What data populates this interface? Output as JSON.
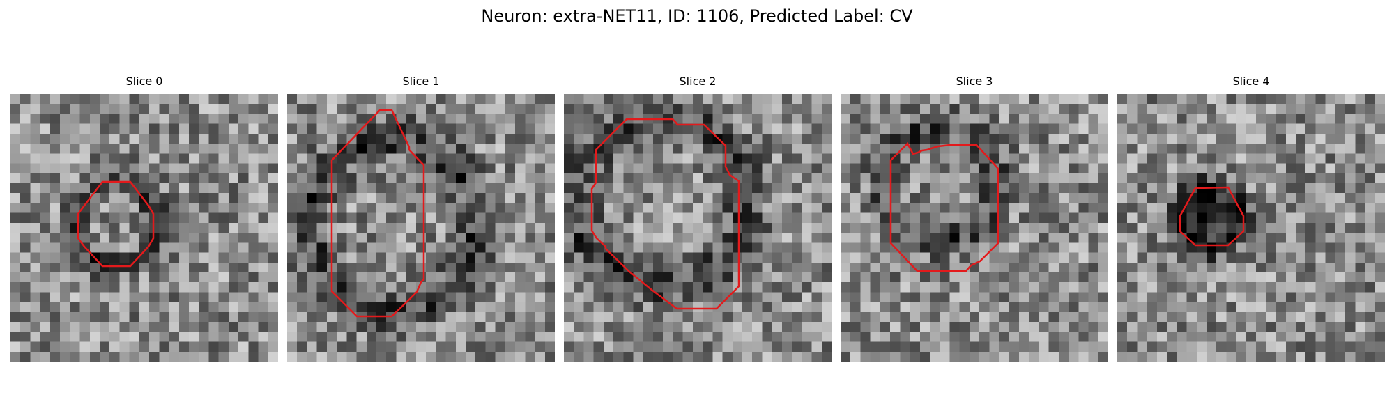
{
  "figure": {
    "title": "Neuron: extra-NET11, ID: 1106, Predicted Label: CV"
  },
  "colors": {
    "roi_outline": "#e31a1c",
    "image_colormap": "gray"
  },
  "panels": [
    {
      "title": "Slice 0",
      "roi": [
        [
          132,
          126
        ],
        [
          106,
          160
        ],
        [
          97,
          172
        ],
        [
          97,
          207
        ],
        [
          106,
          219
        ],
        [
          132,
          247
        ],
        [
          172,
          247
        ],
        [
          198,
          219
        ],
        [
          205,
          207
        ],
        [
          205,
          172
        ],
        [
          198,
          160
        ],
        [
          172,
          126
        ]
      ]
    },
    {
      "title": "Slice 1",
      "roi": [
        [
          133,
          23
        ],
        [
          64,
          95
        ],
        [
          64,
          283
        ],
        [
          100,
          319
        ],
        [
          150,
          319
        ],
        [
          174,
          296
        ],
        [
          186,
          284
        ],
        [
          192,
          270
        ],
        [
          196,
          266
        ],
        [
          196,
          102
        ],
        [
          175,
          80
        ],
        [
          175,
          76
        ],
        [
          150,
          23
        ]
      ]
    },
    {
      "title": "Slice 2",
      "roi": [
        [
          90,
          36
        ],
        [
          46,
          80
        ],
        [
          46,
          127
        ],
        [
          40,
          136
        ],
        [
          40,
          196
        ],
        [
          47,
          207
        ],
        [
          60,
          219
        ],
        [
          60,
          222
        ],
        [
          94,
          255
        ],
        [
          126,
          281
        ],
        [
          162,
          308
        ],
        [
          219,
          308
        ],
        [
          251,
          276
        ],
        [
          251,
          125
        ],
        [
          238,
          116
        ],
        [
          232,
          104
        ],
        [
          232,
          74
        ],
        [
          201,
          44
        ],
        [
          163,
          44
        ],
        [
          160,
          40
        ],
        [
          156,
          36
        ]
      ]
    },
    {
      "title": "Slice 3",
      "roi": [
        [
          96,
          71
        ],
        [
          72,
          95
        ],
        [
          72,
          214
        ],
        [
          110,
          254
        ],
        [
          180,
          254
        ],
        [
          187,
          246
        ],
        [
          200,
          240
        ],
        [
          226,
          214
        ],
        [
          226,
          107
        ],
        [
          195,
          73
        ],
        [
          157,
          73
        ],
        [
          149,
          74
        ],
        [
          140,
          75
        ],
        [
          137,
          76
        ],
        [
          130,
          78
        ],
        [
          124,
          80
        ],
        [
          117,
          81
        ],
        [
          111,
          84
        ],
        [
          104,
          86
        ]
      ]
    },
    {
      "title": "Slice 4",
      "roi": [
        [
          159,
          134
        ],
        [
          113,
          135
        ],
        [
          112,
          135
        ],
        [
          90,
          175
        ],
        [
          90,
          197
        ],
        [
          112,
          217
        ],
        [
          159,
          217
        ],
        [
          181,
          197
        ],
        [
          181,
          175
        ]
      ]
    }
  ]
}
